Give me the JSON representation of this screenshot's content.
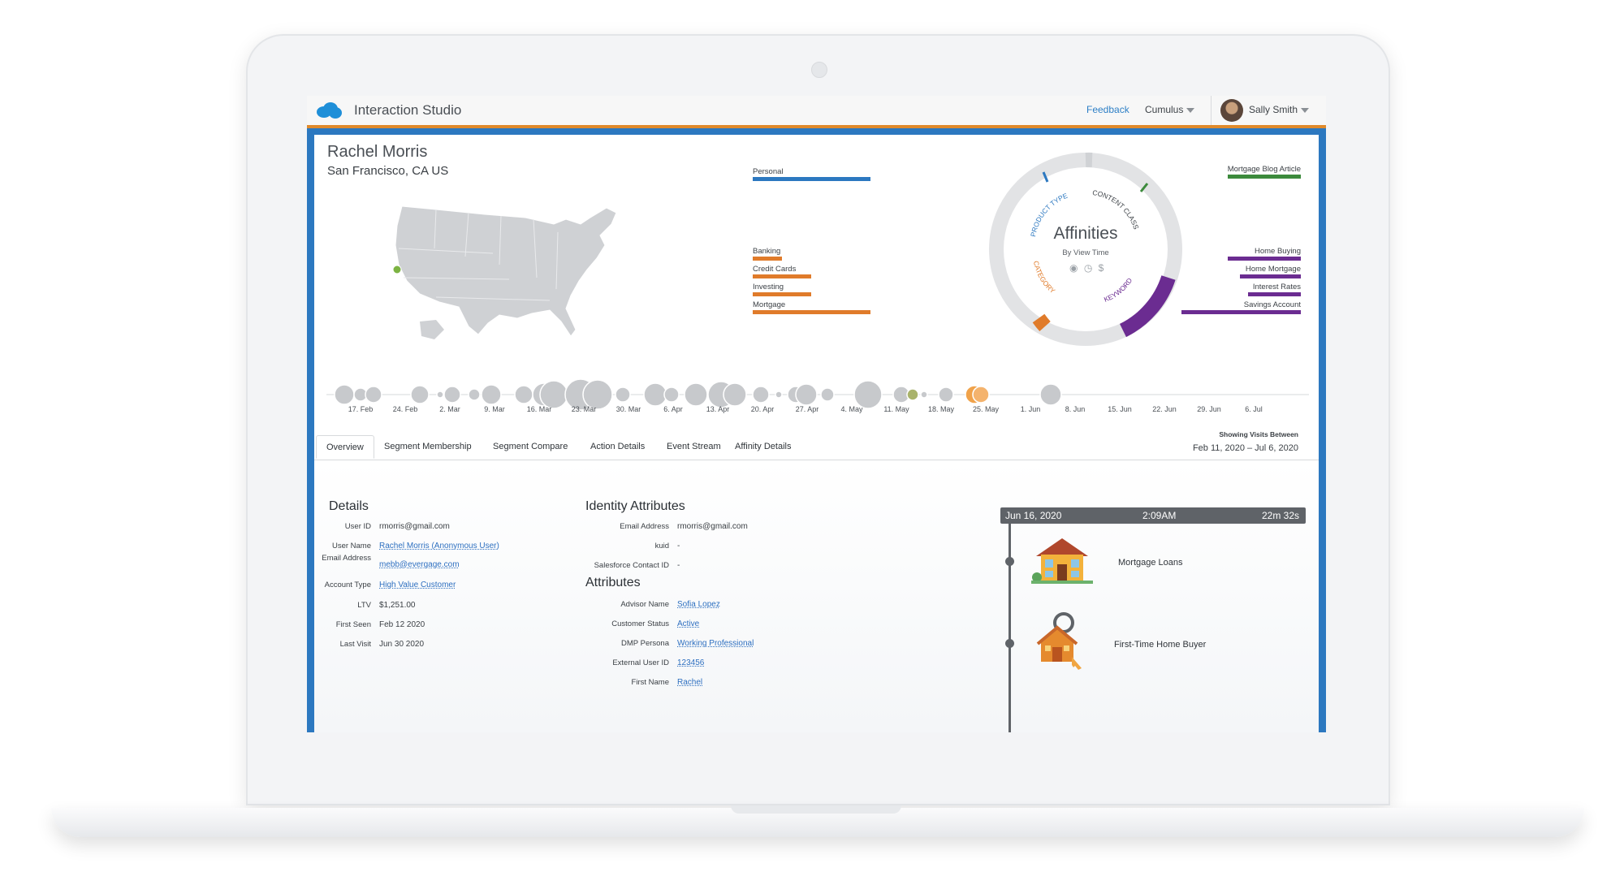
{
  "app": {
    "title": "Interaction Studio"
  },
  "topbar": {
    "feedback": "Feedback",
    "org": "Cumulus",
    "user": "Sally Smith"
  },
  "profile": {
    "name": "Rachel Morris",
    "location": "San Francisco, CA US"
  },
  "affinities": {
    "title": "Affinities",
    "subtitle": "By View Time",
    "ring_labels": {
      "product_type": "PRODUCT TYPE",
      "content_class": "CONTENT CLASS",
      "category": "CATEGORY",
      "keyword": "KEYWORD"
    },
    "left_top": [
      "Personal"
    ],
    "left_bottom": [
      "Banking",
      "Credit Cards",
      "Investing",
      "Mortgage"
    ],
    "right_top": [
      "Mortgage Blog Article"
    ],
    "right_bottom": [
      "Home Buying",
      "Home Mortgage",
      "Interest Rates",
      "Savings Account"
    ],
    "icons": {
      "view": "eye-icon",
      "time": "clock-icon",
      "money": "dollar-icon"
    },
    "colors": {
      "product_type": "#2c78c0",
      "content_class": "#3c8a3c",
      "category": "#e07b2a",
      "keyword": "#6b2c91"
    }
  },
  "timeline": {
    "labels": [
      "17. Feb",
      "24. Feb",
      "2. Mar",
      "9. Mar",
      "16. Mar",
      "23. Mar",
      "30. Mar",
      "6. Apr",
      "13. Apr",
      "20. Apr",
      "27. Apr",
      "4. May",
      "11. May",
      "18. May",
      "25. May",
      "1. Jun",
      "8. Jun",
      "15. Jun",
      "22. Jun",
      "29. Jun",
      "6. Jul"
    ]
  },
  "tabs": [
    "Overview",
    "Segment Membership",
    "Segment Compare",
    "Action Details",
    "Event Stream",
    "Affinity Details"
  ],
  "range": {
    "label": "Showing Visits Between",
    "value": "Feb 11, 2020  –  Jul 6, 2020"
  },
  "details": {
    "title": "Details",
    "rows": [
      {
        "key": "User ID",
        "value": "rmorris@gmail.com",
        "link": false
      },
      {
        "key": "User Name",
        "value": "Rachel Morris (Anonymous User)",
        "link": true
      },
      {
        "key": "Email Address",
        "value": "mebb@evergage.com",
        "link": true
      },
      {
        "key": "Account Type",
        "value": "High Value Customer",
        "link": true
      },
      {
        "key": "LTV",
        "value": "$1,251.00",
        "link": false
      },
      {
        "key": "First Seen",
        "value": "Feb 12 2020",
        "link": false
      },
      {
        "key": "Last Visit",
        "value": "Jun 30 2020",
        "link": false
      }
    ]
  },
  "identity": {
    "title": "Identity Attributes",
    "rows": [
      {
        "key": "Email Address",
        "value": "rmorris@gmail.com"
      },
      {
        "key": "kuid",
        "value": "-"
      },
      {
        "key": "Salesforce Contact ID",
        "value": "-"
      }
    ]
  },
  "attributes": {
    "title": "Attributes",
    "rows": [
      {
        "key": "Advisor Name",
        "value": "Sofia Lopez"
      },
      {
        "key": "Customer Status",
        "value": "Active"
      },
      {
        "key": "DMP Persona",
        "value": "Working Professional"
      },
      {
        "key": "External User ID",
        "value": "123456"
      },
      {
        "key": "First Name",
        "value": "Rachel"
      }
    ]
  },
  "session": {
    "date": "Jun 16, 2020",
    "time": "2:09AM",
    "duration": "22m 32s",
    "items": [
      {
        "label": "Mortgage Loans",
        "icon": "house-icon"
      },
      {
        "label": "First-Time Home Buyer",
        "icon": "house-key-icon"
      }
    ]
  }
}
